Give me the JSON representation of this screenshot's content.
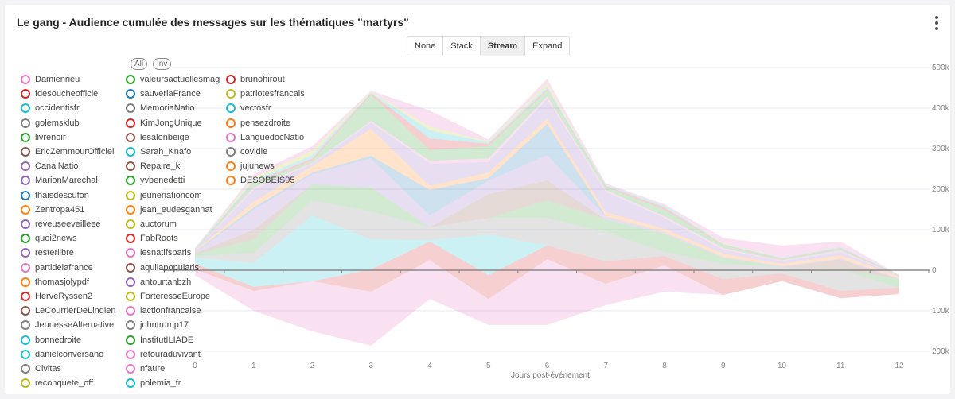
{
  "header": {
    "title": "Le gang - Audience cumulée des messages sur les thématiques \"martyrs\""
  },
  "modes": [
    {
      "label": "None",
      "active": false
    },
    {
      "label": "Stack",
      "active": false
    },
    {
      "label": "Stream",
      "active": true
    },
    {
      "label": "Expand",
      "active": false
    }
  ],
  "legend_controls": {
    "all": "All",
    "inv": "Inv"
  },
  "legend": [
    [
      {
        "name": "Damienrieu",
        "color": "#e377c2"
      },
      {
        "name": "fdesoucheofficiel",
        "color": "#d62728"
      },
      {
        "name": "occidentisfr",
        "color": "#17becf"
      },
      {
        "name": "golemsklub",
        "color": "#7f7f7f"
      },
      {
        "name": "livrenoir",
        "color": "#2ca02c"
      },
      {
        "name": "EricZemmourOfficiel",
        "color": "#8c564b"
      },
      {
        "name": "CanalNatio",
        "color": "#9467bd"
      },
      {
        "name": "MarionMarechal",
        "color": "#9467bd"
      },
      {
        "name": "thaisdescufon",
        "color": "#1f77b4"
      },
      {
        "name": "Zentropa451",
        "color": "#ff7f0e"
      },
      {
        "name": "reveuseeveilleee",
        "color": "#9467bd"
      },
      {
        "name": "quoi2news",
        "color": "#2ca02c"
      },
      {
        "name": "resterlibre",
        "color": "#9467bd"
      },
      {
        "name": "partidelafrance",
        "color": "#e377c2"
      },
      {
        "name": "thomasjolypdf",
        "color": "#ff7f0e"
      },
      {
        "name": "HerveRyssen2",
        "color": "#d62728"
      },
      {
        "name": "LeCourrierDeLindien",
        "color": "#8c564b"
      },
      {
        "name": "JeunesseAlternative",
        "color": "#7f7f7f"
      },
      {
        "name": "bonnedroite",
        "color": "#17becf"
      },
      {
        "name": "danielconversano",
        "color": "#17becf"
      },
      {
        "name": "Civitas",
        "color": "#7f7f7f"
      },
      {
        "name": "reconquete_off",
        "color": "#bcbd22"
      }
    ],
    [
      {
        "name": "valeursactuellesmag",
        "color": "#2ca02c"
      },
      {
        "name": "sauverlaFrance",
        "color": "#1f77b4"
      },
      {
        "name": "MemoriaNatio",
        "color": "#7f7f7f"
      },
      {
        "name": "KimJongUnique",
        "color": "#d62728"
      },
      {
        "name": "lesalonbeige",
        "color": "#8c564b"
      },
      {
        "name": "Sarah_Knafo",
        "color": "#17becf"
      },
      {
        "name": "Repaire_k",
        "color": "#8c564b"
      },
      {
        "name": "yvbenedetti",
        "color": "#2ca02c"
      },
      {
        "name": "jeunenationcom",
        "color": "#bcbd22"
      },
      {
        "name": "jean_eudesgannat",
        "color": "#ff7f0e"
      },
      {
        "name": "auctorum",
        "color": "#bcbd22"
      },
      {
        "name": "FabRoots",
        "color": "#d62728"
      },
      {
        "name": "lesnatifsparis",
        "color": "#e377c2"
      },
      {
        "name": "aquilapopularis",
        "color": "#8c564b"
      },
      {
        "name": "antourtanbzh",
        "color": "#9467bd"
      },
      {
        "name": "ForteresseEurope",
        "color": "#bcbd22"
      },
      {
        "name": "lactionfrancaise",
        "color": "#e377c2"
      },
      {
        "name": "johntrump17",
        "color": "#7f7f7f"
      },
      {
        "name": "InstitutILIADE",
        "color": "#2ca02c"
      },
      {
        "name": "retouraduvivant",
        "color": "#e377c2"
      },
      {
        "name": "nfaure",
        "color": "#e377c2"
      },
      {
        "name": "polemia_fr",
        "color": "#17becf"
      }
    ],
    [
      {
        "name": "brunohirout",
        "color": "#d62728"
      },
      {
        "name": "patriotesfrancais",
        "color": "#bcbd22"
      },
      {
        "name": "vectosfr",
        "color": "#17becf"
      },
      {
        "name": "pensezdroite",
        "color": "#ff7f0e"
      },
      {
        "name": "LanguedocNatio",
        "color": "#e377c2"
      },
      {
        "name": "covidie",
        "color": "#7f7f7f"
      },
      {
        "name": "jujunews",
        "color": "#ff7f0e"
      },
      {
        "name": "DESOBEIS95",
        "color": "#ff7f0e"
      }
    ]
  ],
  "chart_data": {
    "type": "area",
    "stacking": "stream",
    "title": "Le gang - Audience cumulée des messages sur les thématiques \"martyrs\"",
    "xlabel": "Jours post-événement",
    "ylabel": "",
    "x": [
      0,
      1,
      2,
      3,
      4,
      5,
      6,
      7,
      8,
      9,
      10,
      11,
      12
    ],
    "xlim": [
      0,
      12
    ],
    "ylim": [
      -200,
      500
    ],
    "y_unit": "k",
    "y_ticks": [
      {
        "v": 500,
        "label": "500k"
      },
      {
        "v": 400,
        "label": "400k"
      },
      {
        "v": 300,
        "label": "300k"
      },
      {
        "v": 200,
        "label": "200k"
      },
      {
        "v": 100,
        "label": "100k"
      },
      {
        "v": 0,
        "label": "0"
      },
      {
        "v": -100,
        "label": "100k"
      },
      {
        "v": -200,
        "label": "200k"
      }
    ],
    "grid": true,
    "legend_position": "top-left",
    "layer_colors": [
      "#e377c2",
      "#d62728",
      "#17becf",
      "#7f7f7f",
      "#2ca02c",
      "#8c564b",
      "#9467bd",
      "#1f77b4",
      "#ff7f0e",
      "#9467bd",
      "#e377c2",
      "#2ca02c",
      "#d62728",
      "#17becf",
      "#bcbd22",
      "#e377c2"
    ],
    "layer_boundaries": [
      [
        -12,
        -100,
        -151,
        -186,
        -71,
        -135,
        -135,
        -86,
        -53,
        -61,
        -27,
        -69,
        -59
      ],
      [
        2,
        -51,
        -27,
        -53,
        25,
        -71,
        27,
        -33,
        12,
        -61,
        -27,
        -69,
        -59
      ],
      [
        16,
        -41,
        -27,
        2,
        71,
        -12,
        61,
        22,
        35,
        -22,
        -8,
        -51,
        -43
      ],
      [
        31,
        18,
        135,
        76,
        74,
        88,
        61,
        22,
        35,
        -22,
        -8,
        -51,
        -43
      ],
      [
        35,
        43,
        172,
        145,
        106,
        129,
        129,
        94,
        45,
        16,
        8,
        2,
        -43
      ],
      [
        39,
        76,
        212,
        204,
        106,
        129,
        172,
        125,
        90,
        31,
        8,
        2,
        -22
      ],
      [
        41,
        100,
        212,
        204,
        106,
        188,
        221,
        125,
        90,
        31,
        8,
        27,
        -22
      ],
      [
        43,
        149,
        237,
        276,
        135,
        221,
        284,
        133,
        94,
        33,
        10,
        29,
        -20
      ],
      [
        45,
        155,
        241,
        282,
        198,
        227,
        361,
        133,
        94,
        33,
        10,
        29,
        -20
      ],
      [
        47,
        169,
        257,
        349,
        208,
        241,
        374,
        143,
        102,
        41,
        16,
        37,
        -16
      ],
      [
        49,
        198,
        263,
        365,
        263,
        267,
        423,
        194,
        129,
        51,
        22,
        45,
        -14
      ],
      [
        49,
        204,
        265,
        368,
        270,
        276,
        429,
        198,
        133,
        55,
        24,
        49,
        -14
      ],
      [
        51,
        214,
        270,
        433,
        296,
        306,
        443,
        206,
        149,
        61,
        27,
        53,
        -12
      ],
      [
        51,
        218,
        276,
        437,
        325,
        312,
        447,
        208,
        155,
        63,
        29,
        55,
        -12
      ],
      [
        53,
        223,
        284,
        439,
        345,
        316,
        453,
        210,
        159,
        65,
        31,
        57,
        -12
      ],
      [
        53,
        229,
        296,
        441,
        355,
        318,
        461,
        210,
        159,
        67,
        31,
        57,
        -12
      ],
      [
        55,
        237,
        306,
        443,
        394,
        323,
        472,
        214,
        163,
        80,
        61,
        71,
        -12
      ]
    ]
  }
}
